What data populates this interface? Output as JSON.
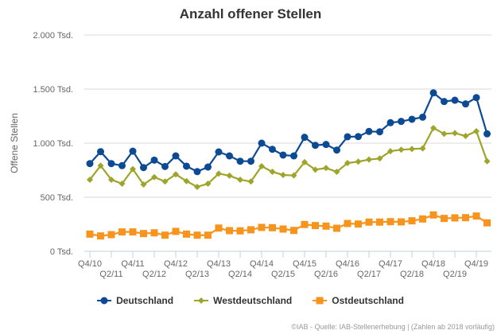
{
  "chart_data": {
    "type": "line",
    "title": "Anzahl offener Stellen",
    "xlabel": "",
    "ylabel": "Offene Stellen",
    "ylim": [
      0,
      2000
    ],
    "yticks": [
      0,
      500,
      1000,
      1500,
      2000
    ],
    "ytick_labels": [
      "0 Tsd.",
      "500 Tsd.",
      "1.000 Tsd.",
      "1.500 Tsd.",
      "2.000 Tsd."
    ],
    "grid": true,
    "legend_position": "bottom",
    "x": [
      "Q4/10",
      "Q1/11",
      "Q2/11",
      "Q3/11",
      "Q4/11",
      "Q1/12",
      "Q2/12",
      "Q3/12",
      "Q4/12",
      "Q1/13",
      "Q2/13",
      "Q3/13",
      "Q4/13",
      "Q1/14",
      "Q2/14",
      "Q3/14",
      "Q4/14",
      "Q1/15",
      "Q2/15",
      "Q3/15",
      "Q4/15",
      "Q1/16",
      "Q2/16",
      "Q3/16",
      "Q4/16",
      "Q1/17",
      "Q2/17",
      "Q3/17",
      "Q4/17",
      "Q1/18",
      "Q2/18",
      "Q3/18",
      "Q4/18",
      "Q1/19",
      "Q2/19",
      "Q3/19",
      "Q4/19",
      "Q1/20"
    ],
    "xtick_labels_upper": [
      "Q4/10",
      "Q4/11",
      "Q4/12",
      "Q4/13",
      "Q4/14",
      "Q4/15",
      "Q4/16",
      "Q4/17",
      "Q4/18",
      "Q4/19"
    ],
    "xtick_labels_lower": [
      "Q2/11",
      "Q2/12",
      "Q2/13",
      "Q2/14",
      "Q2/15",
      "Q2/16",
      "Q2/17",
      "Q2/18",
      "Q2/19"
    ],
    "series": [
      {
        "name": "Deutschland",
        "color": "#0d4a94",
        "marker": "circle",
        "values": [
          811,
          921,
          811,
          792,
          926,
          774,
          843,
          784,
          882,
          787,
          737,
          779,
          919,
          882,
          833,
          833,
          1000,
          943,
          890,
          882,
          1054,
          980,
          988,
          936,
          1059,
          1061,
          1108,
          1105,
          1189,
          1201,
          1221,
          1240,
          1465,
          1385,
          1397,
          1363,
          1421,
          1086
        ]
      },
      {
        "name": "Westdeutschland",
        "color": "#9ea52a",
        "marker": "diamond",
        "values": [
          662,
          792,
          662,
          625,
          760,
          618,
          686,
          645,
          711,
          649,
          596,
          625,
          718,
          699,
          662,
          645,
          787,
          735,
          706,
          701,
          824,
          755,
          770,
          735,
          816,
          829,
          848,
          858,
          926,
          939,
          946,
          951,
          1140,
          1086,
          1093,
          1066,
          1110,
          833
        ]
      },
      {
        "name": "Ostdeutschland",
        "color": "#f7941d",
        "marker": "square",
        "values": [
          159,
          142,
          154,
          179,
          179,
          164,
          171,
          149,
          184,
          159,
          149,
          149,
          215,
          191,
          189,
          199,
          221,
          218,
          206,
          193,
          248,
          238,
          233,
          213,
          257,
          252,
          270,
          270,
          274,
          272,
          282,
          299,
          336,
          304,
          309,
          311,
          326,
          263
        ]
      }
    ]
  },
  "footer": "©IAB - Quelle: IAB-Stellenerhebung | (Zahlen ab 2018 vorläufig)"
}
